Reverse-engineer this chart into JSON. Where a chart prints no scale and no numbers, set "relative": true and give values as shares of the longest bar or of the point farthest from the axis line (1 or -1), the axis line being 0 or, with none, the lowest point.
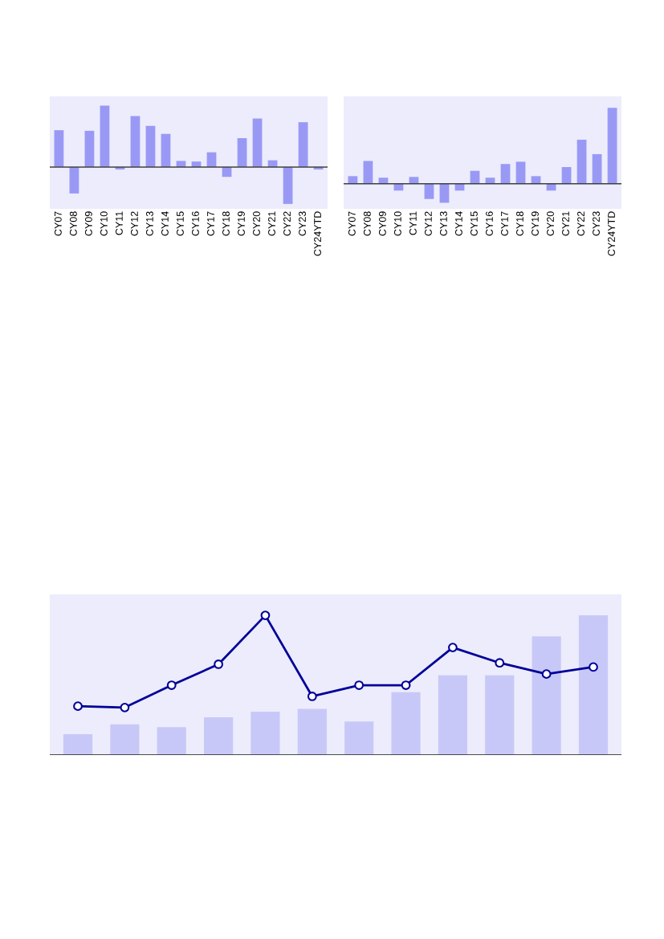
{
  "chart_data": [
    {
      "type": "bar",
      "relative": true,
      "categories": [
        "CY07",
        "CY08",
        "CY09",
        "CY10",
        "CY11",
        "CY12",
        "CY13",
        "CY14",
        "CY15",
        "CY16",
        "CY17",
        "CY18",
        "CY19",
        "CY20",
        "CY21",
        "CY22",
        "CY23",
        "CY24YTD"
      ],
      "series": [
        {
          "color": "#9999f5",
          "values": [
            0.6,
            -0.43,
            0.59,
            1,
            -0.04,
            0.83,
            0.67,
            0.54,
            0.1,
            0.09,
            0.24,
            -0.16,
            0.47,
            0.79,
            0.11,
            -0.6,
            0.73,
            -0.04
          ]
        }
      ]
    },
    {
      "type": "bar",
      "relative": true,
      "categories": [
        "CY07",
        "CY08",
        "CY09",
        "CY10",
        "CY11",
        "CY12",
        "CY13",
        "CY14",
        "CY15",
        "CY16",
        "CY17",
        "CY18",
        "CY19",
        "CY20",
        "CY21",
        "CY22",
        "CY23",
        "CY24YTD"
      ],
      "series": [
        {
          "color": "#9999f5",
          "values": [
            0.1,
            0.3,
            0.08,
            -0.09,
            0.09,
            -0.2,
            -0.25,
            -0.09,
            0.17,
            0.08,
            0.26,
            0.29,
            0.1,
            -0.09,
            0.22,
            0.58,
            0.39,
            1
          ]
        }
      ]
    },
    {
      "type": "bar",
      "relative": true,
      "categories": [
        null,
        null,
        null,
        null,
        null,
        null,
        null,
        null,
        null,
        null,
        null,
        null
      ],
      "series": [
        {
          "color": "#c8c8f8",
          "values": [
            0.15,
            0.22,
            0.2,
            0.27,
            0.31,
            0.33,
            0.24,
            0.45,
            0.57,
            0.57,
            0.85,
            1
          ]
        }
      ]
    },
    {
      "type": "line",
      "relative": true,
      "marker": "circle",
      "categories": [
        null,
        null,
        null,
        null,
        null,
        null,
        null,
        null,
        null,
        null,
        null,
        null
      ],
      "series": [
        {
          "color": "#000099",
          "values": [
            0.35,
            0.34,
            0.5,
            0.65,
            1,
            0.42,
            0.5,
            0.5,
            0.77,
            0.66,
            0.58,
            0.63
          ]
        }
      ]
    }
  ]
}
